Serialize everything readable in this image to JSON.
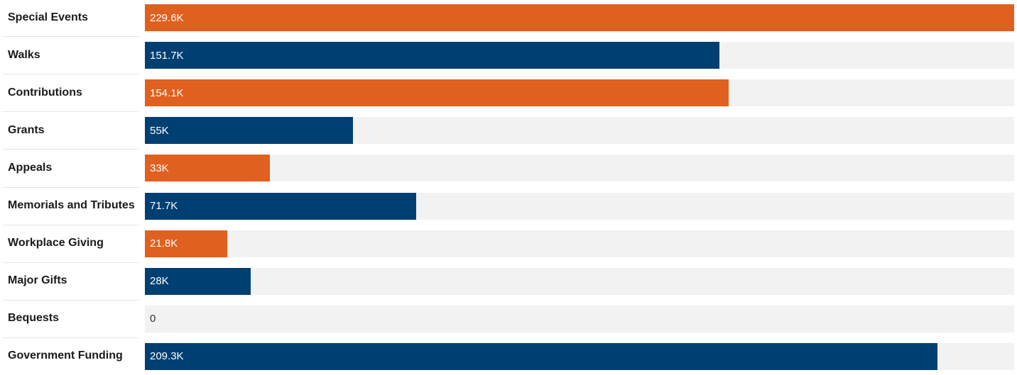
{
  "chart_data": {
    "type": "bar",
    "orientation": "horizontal",
    "categories": [
      "Special Events",
      "Walks",
      "Contributions",
      "Grants",
      "Appeals",
      "Memorials and Tributes",
      "Workplace Giving",
      "Major Gifts",
      "Bequests",
      "Government Funding"
    ],
    "values": [
      229600,
      151700,
      154100,
      55000,
      33000,
      71700,
      21800,
      28000,
      0,
      209300
    ],
    "value_labels": [
      "229.6K",
      "151.7K",
      "154.1K",
      "55K",
      "33K",
      "71.7K",
      "21.8K",
      "28K",
      "0",
      "209.3K"
    ],
    "xlim": [
      0,
      229600
    ],
    "grid": false,
    "legend": "none",
    "colors": [
      "#e0601f",
      "#003f72"
    ],
    "track_color": "#f2f2f2"
  }
}
